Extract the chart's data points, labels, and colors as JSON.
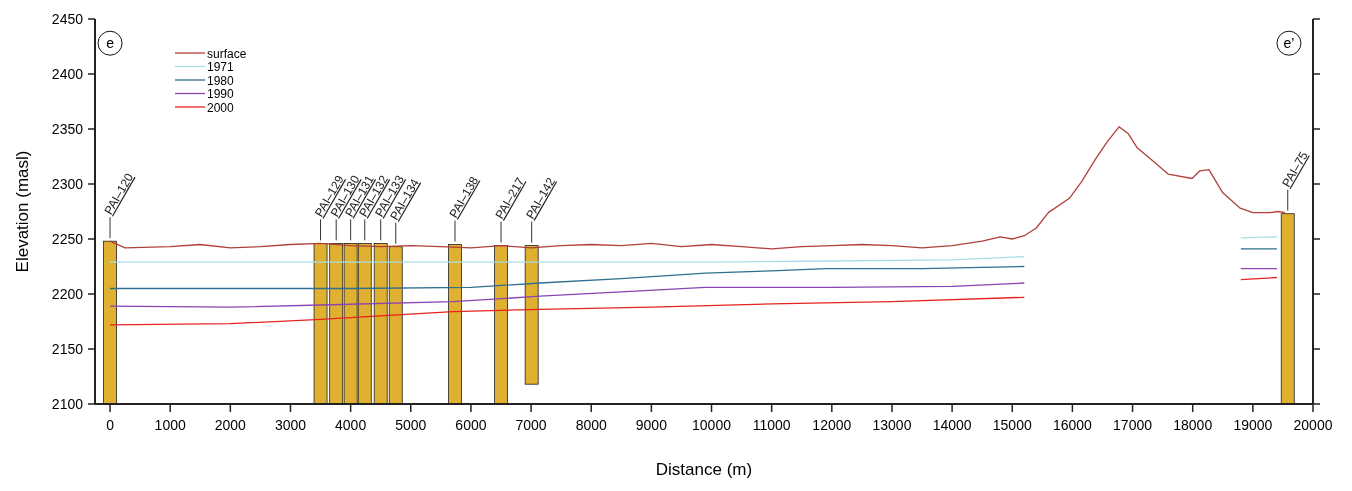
{
  "chart_data": {
    "type": "line",
    "xlabel": "Distance (m)",
    "ylabel": "Elevation (masl)",
    "xlim": [
      -250,
      20000
    ],
    "ylim": [
      2100,
      2450
    ],
    "xticks": [
      0,
      1000,
      2000,
      3000,
      4000,
      5000,
      6000,
      7000,
      8000,
      9000,
      10000,
      11000,
      12000,
      13000,
      14000,
      15000,
      16000,
      17000,
      18000,
      19000,
      20000
    ],
    "yticks": [
      2100,
      2150,
      2200,
      2250,
      2300,
      2350,
      2400,
      2450
    ],
    "legend": "top left",
    "grid": false,
    "marker": "none",
    "line_style": "solid",
    "series": [
      {
        "type": "bar",
        "color": "#e0b030",
        "x": [
          0,
          3500,
          3760,
          4000,
          4235,
          4500,
          4750,
          5735,
          6500,
          7010,
          19580
        ],
        "base": [
          2100,
          2100,
          2100,
          2100,
          2100,
          2100,
          2100,
          2100,
          2100,
          2118,
          2100
        ],
        "values": [
          148,
          146,
          146,
          146,
          146,
          146,
          143,
          145,
          144,
          126,
          173
        ]
      },
      {
        "name": "surface",
        "color": "#b0403a",
        "x": [
          0,
          250,
          1000,
          1500,
          2000,
          2500,
          3000,
          3500,
          4000,
          4500,
          5000,
          5500,
          6000,
          6500,
          7000,
          7500,
          8000,
          8500,
          9000,
          9500,
          10000,
          10500,
          11000,
          11500,
          12000,
          12500,
          13000,
          13500,
          14000,
          14500,
          14800,
          15000,
          15200,
          15400,
          15600,
          15950,
          16150,
          16400,
          16575,
          16775,
          16925,
          17075,
          17340,
          17590,
          17990,
          18120,
          18270,
          18500,
          18790,
          19000,
          19285,
          19420,
          19535
        ],
        "values": [
          2248,
          2242,
          2243,
          2245,
          2242,
          2243,
          2245,
          2246,
          2244,
          2243,
          2244,
          2243,
          2242,
          2244,
          2242,
          2244,
          2245,
          2244,
          2246,
          2243,
          2245,
          2243,
          2241,
          2243,
          2244,
          2245,
          2244,
          2242,
          2244,
          2248,
          2252,
          2250,
          2253,
          2260,
          2274,
          2287,
          2302,
          2324,
          2338,
          2352,
          2346,
          2333,
          2321,
          2309,
          2305,
          2312,
          2313,
          2292,
          2278,
          2274,
          2274,
          2275,
          2274
        ]
      },
      {
        "name": "1971",
        "color": "#a8dde8",
        "x": [
          0,
          2000,
          4000,
          6000,
          8000,
          10000,
          12000,
          14000,
          15200,
          17000,
          18800,
          19400
        ],
        "values": [
          2229,
          2229,
          2229,
          2229,
          2229,
          2229,
          2230,
          2231,
          2234,
          null,
          2251,
          2252
        ]
      },
      {
        "name": "1980",
        "color": "#2f6f8f",
        "x": [
          0,
          2000,
          4000,
          6000,
          7150,
          8500,
          9900,
          11000,
          11900,
          13500,
          15200,
          17000,
          18800,
          19400
        ],
        "values": [
          2205,
          2205,
          2205,
          2206,
          2210,
          2214,
          2219,
          2221,
          2223,
          2223,
          2225,
          null,
          2241,
          2241
        ]
      },
      {
        "name": "1990",
        "color": "#8a44b4",
        "x": [
          0,
          2000,
          3500,
          5700,
          7150,
          8500,
          9900,
          12000,
          14000,
          15200,
          17000,
          18800,
          19400
        ],
        "values": [
          2189,
          2188,
          2190,
          2193,
          2198,
          2202,
          2206,
          2206,
          2207,
          2210,
          null,
          2223,
          2223
        ]
      },
      {
        "name": "2000",
        "color": "#e8221e",
        "x": [
          0,
          2000,
          3500,
          5700,
          7150,
          9000,
          11000,
          13000,
          15200,
          17000,
          18800,
          19400
        ],
        "values": [
          2172,
          2173,
          2177,
          2184,
          2186,
          2188,
          2191,
          2193,
          2197,
          null,
          2213,
          2215
        ]
      }
    ],
    "annotations": [
      {
        "text": "e",
        "x": 0,
        "y": 2428
      },
      {
        "text": "e’",
        "x": 19600,
        "y": 2428
      },
      {
        "text": "PAI–120",
        "x": 0,
        "y": 2248
      },
      {
        "text": "PAI–129",
        "x": 3500,
        "y": 2246
      },
      {
        "text": "PAI–130",
        "x": 3760,
        "y": 2246
      },
      {
        "text": "PAI–131",
        "x": 4000,
        "y": 2246
      },
      {
        "text": "PAI–132",
        "x": 4235,
        "y": 2246
      },
      {
        "text": "PAI–133",
        "x": 4500,
        "y": 2246
      },
      {
        "text": "PAI–134",
        "x": 4750,
        "y": 2243
      },
      {
        "text": "PAI–138",
        "x": 5735,
        "y": 2245
      },
      {
        "text": "PAI–217",
        "x": 6500,
        "y": 2244
      },
      {
        "text": "PAI–142",
        "x": 7010,
        "y": 2244
      },
      {
        "text": "PAI–75",
        "x": 19580,
        "y": 2273
      }
    ]
  }
}
